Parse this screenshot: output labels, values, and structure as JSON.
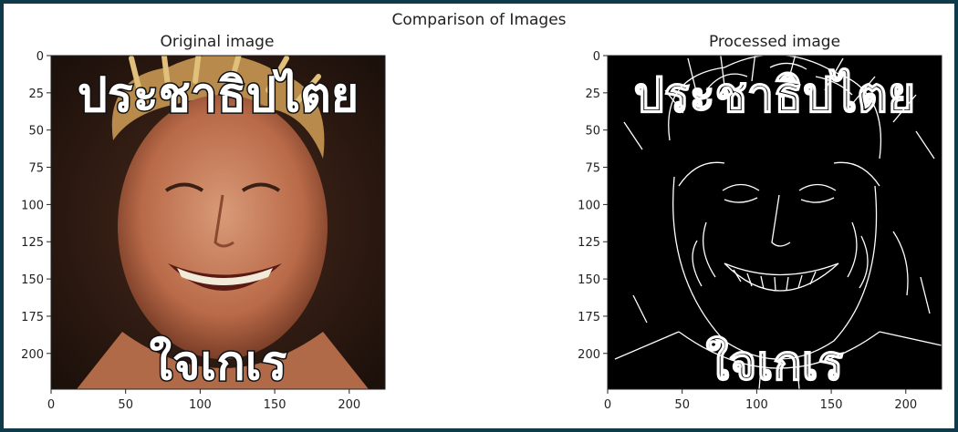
{
  "figure": {
    "suptitle": "Comparison of Images"
  },
  "chart_data": [
    {
      "type": "image",
      "title": "Original image",
      "xlim": [
        0,
        224
      ],
      "ylim": [
        224,
        0
      ],
      "xticks": [
        0,
        50,
        100,
        150,
        200
      ],
      "yticks": [
        0,
        25,
        50,
        75,
        100,
        125,
        150,
        175,
        200
      ],
      "image_text": {
        "top": "ประชาธิปไตย",
        "bottom": "ใจเกเร"
      },
      "colors": {
        "background": "#2a1a14",
        "skin": "#c97e5c",
        "hair": "#c9a15a",
        "text": "#ffffff",
        "outline": "#111111"
      }
    },
    {
      "type": "image",
      "title": "Processed image",
      "xlim": [
        0,
        224
      ],
      "ylim": [
        224,
        0
      ],
      "xticks": [
        0,
        50,
        100,
        150,
        200
      ],
      "yticks": [
        0,
        25,
        50,
        75,
        100,
        125,
        150,
        175,
        200
      ],
      "image_text": {
        "top": "ประชาธิปไตย",
        "bottom": "ใจเกเร"
      },
      "colors": {
        "background": "#000000",
        "edges": "#ffffff"
      }
    }
  ]
}
